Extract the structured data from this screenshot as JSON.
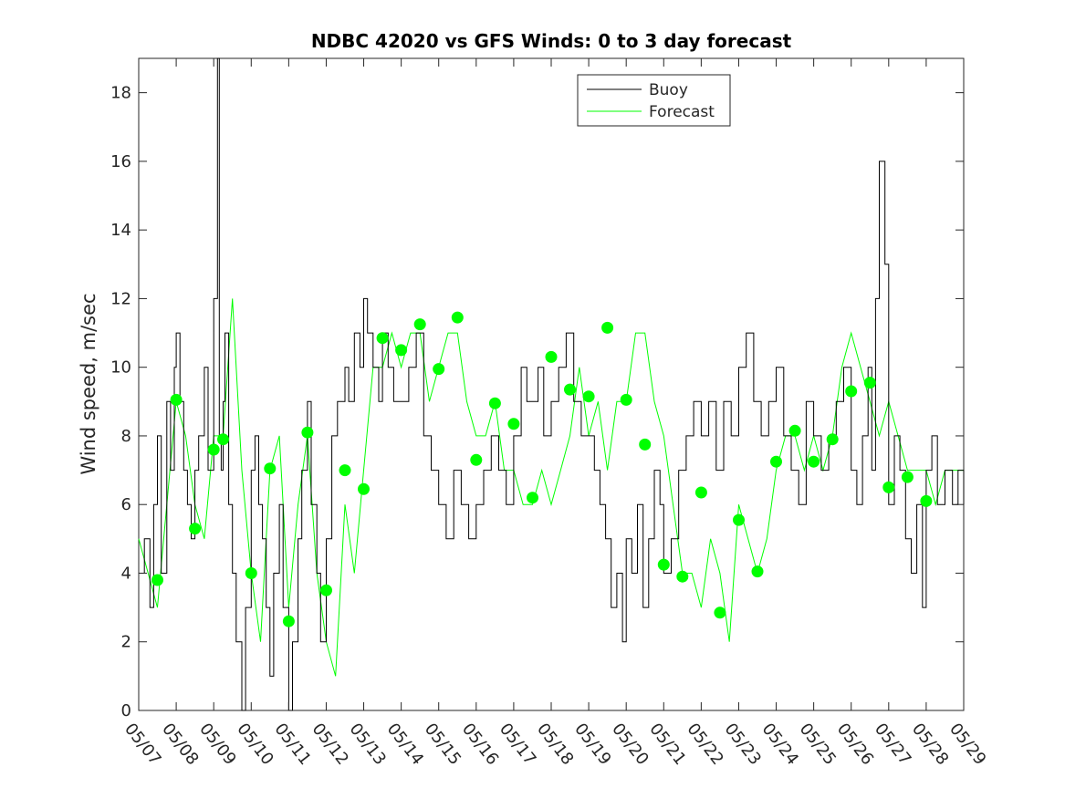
{
  "chart_data": {
    "type": "line",
    "title": "NDBC 42020 vs GFS Winds: 0 to 3 day forecast",
    "xlabel": "",
    "ylabel": "Wind speed, m/sec",
    "xlim": [
      "05/07",
      "05/29"
    ],
    "ylim": [
      0,
      19
    ],
    "yticks": [
      0,
      2,
      4,
      6,
      8,
      10,
      12,
      14,
      16,
      18
    ],
    "xticks": [
      "05/07",
      "05/08",
      "05/09",
      "05/10",
      "05/11",
      "05/12",
      "05/13",
      "05/14",
      "05/15",
      "05/16",
      "05/17",
      "05/18",
      "05/19",
      "05/20",
      "05/21",
      "05/22",
      "05/23",
      "05/24",
      "05/25",
      "05/26",
      "05/27",
      "05/28",
      "05/29"
    ],
    "grid": false,
    "legend": {
      "location": "top-center",
      "entries": [
        "Buoy",
        "Forecast"
      ]
    },
    "colors": {
      "buoy": "#000000",
      "forecast": "#00ff00",
      "axes": "#262626"
    },
    "x_unit": "day index from 05/07",
    "series": [
      {
        "name": "Buoy",
        "x": [
          0.0,
          0.15,
          0.3,
          0.4,
          0.5,
          0.6,
          0.75,
          0.85,
          0.95,
          1.0,
          1.1,
          1.2,
          1.3,
          1.4,
          1.5,
          1.6,
          1.75,
          1.85,
          2.0,
          2.1,
          2.15,
          2.2,
          2.25,
          2.3,
          2.4,
          2.5,
          2.6,
          2.75,
          2.85,
          3.0,
          3.1,
          3.2,
          3.3,
          3.4,
          3.5,
          3.6,
          3.75,
          3.85,
          4.0,
          4.1,
          4.25,
          4.35,
          4.5,
          4.6,
          4.75,
          4.85,
          5.0,
          5.15,
          5.3,
          5.5,
          5.6,
          5.75,
          5.9,
          6.0,
          6.1,
          6.25,
          6.4,
          6.5,
          6.65,
          6.8,
          7.0,
          7.2,
          7.4,
          7.6,
          7.8,
          8.0,
          8.2,
          8.4,
          8.6,
          8.8,
          9.0,
          9.2,
          9.4,
          9.6,
          9.8,
          10.0,
          10.2,
          10.35,
          10.5,
          10.65,
          10.8,
          11.0,
          11.2,
          11.4,
          11.6,
          11.8,
          12.0,
          12.15,
          12.3,
          12.45,
          12.6,
          12.75,
          12.9,
          13.0,
          13.15,
          13.3,
          13.45,
          13.6,
          13.75,
          13.9,
          14.0,
          14.2,
          14.4,
          14.6,
          14.8,
          15.0,
          15.2,
          15.4,
          15.6,
          15.8,
          16.0,
          16.2,
          16.4,
          16.6,
          16.8,
          17.0,
          17.2,
          17.4,
          17.6,
          17.8,
          18.0,
          18.2,
          18.4,
          18.6,
          18.8,
          19.0,
          19.15,
          19.3,
          19.45,
          19.55,
          19.65,
          19.75,
          19.9,
          20.0,
          20.15,
          20.3,
          20.45,
          20.6,
          20.75,
          20.9,
          21.0,
          21.15,
          21.3,
          21.5,
          21.7,
          21.85,
          22.0
        ],
        "values": [
          4,
          5,
          3,
          6,
          8,
          4,
          9,
          7,
          10,
          11,
          9,
          7,
          6,
          5,
          7,
          8,
          10,
          7,
          12,
          19,
          8,
          7,
          9,
          11,
          6,
          4,
          2,
          0,
          3,
          7,
          8,
          6,
          5,
          3,
          1,
          4,
          6,
          3,
          0,
          2,
          5,
          7,
          9,
          6,
          4,
          2,
          5,
          8,
          9,
          10,
          9,
          11,
          10,
          12,
          11,
          10,
          9,
          11,
          10,
          9,
          9,
          10,
          11,
          8,
          7,
          6,
          5,
          7,
          6,
          5,
          6,
          7,
          8,
          7,
          6,
          8,
          10,
          9,
          9,
          10,
          8,
          9,
          10,
          11,
          9,
          8,
          8,
          7,
          6,
          5,
          3,
          4,
          2,
          5,
          4,
          6,
          3,
          5,
          7,
          6,
          4,
          5,
          7,
          8,
          9,
          8,
          9,
          7,
          9,
          8,
          10,
          11,
          9,
          8,
          9,
          10,
          8,
          7,
          6,
          9,
          8,
          7,
          8,
          9,
          10,
          7,
          6,
          8,
          10,
          7,
          12,
          16,
          13,
          6,
          8,
          7,
          5,
          4,
          6,
          3,
          7,
          8,
          6,
          7,
          6,
          7,
          6
        ]
      },
      {
        "name": "Forecast",
        "x": [
          0.0,
          0.25,
          0.5,
          0.75,
          1.0,
          1.25,
          1.5,
          1.75,
          2.0,
          2.25,
          2.5,
          2.75,
          3.0,
          3.25,
          3.5,
          3.75,
          4.0,
          4.25,
          4.5,
          4.75,
          5.0,
          5.25,
          5.5,
          5.75,
          6.0,
          6.25,
          6.5,
          6.75,
          7.0,
          7.25,
          7.5,
          7.75,
          8.0,
          8.25,
          8.5,
          8.75,
          9.0,
          9.25,
          9.5,
          9.75,
          10.0,
          10.25,
          10.5,
          10.75,
          11.0,
          11.25,
          11.5,
          11.75,
          12.0,
          12.25,
          12.5,
          12.75,
          13.0,
          13.25,
          13.5,
          13.75,
          14.0,
          14.25,
          14.5,
          14.75,
          15.0,
          15.25,
          15.5,
          15.75,
          16.0,
          16.25,
          16.5,
          16.75,
          17.0,
          17.25,
          17.5,
          17.75,
          18.0,
          18.25,
          18.5,
          18.75,
          19.0,
          19.25,
          19.5,
          19.75,
          20.0,
          20.25,
          20.5,
          20.75,
          21.0,
          21.25,
          21.5,
          21.75,
          22.0
        ],
        "values": [
          5,
          4,
          3,
          6,
          9,
          8,
          6,
          5,
          8,
          8,
          12,
          7,
          4,
          2,
          7,
          8,
          3,
          6,
          8,
          4,
          2,
          1,
          6,
          4,
          7,
          10,
          10,
          11,
          10,
          11,
          11,
          9,
          10,
          11,
          11,
          9,
          8,
          8,
          9,
          7,
          7,
          6,
          6,
          7,
          6,
          7,
          8,
          10,
          8,
          9,
          7,
          9,
          9,
          11,
          11,
          9,
          8,
          6,
          4,
          4,
          3,
          5,
          4,
          2,
          6,
          5,
          4,
          5,
          7,
          8,
          8,
          7,
          8,
          7,
          8,
          10,
          11,
          10,
          9,
          8,
          9,
          8,
          7,
          7,
          7,
          6,
          7,
          7,
          7
        ]
      }
    ],
    "markers": {
      "name": "Forecast markers",
      "x": [
        0.5,
        1.0,
        1.5,
        2.0,
        2.25,
        3.0,
        3.5,
        4.0,
        4.5,
        5.0,
        5.5,
        6.0,
        6.5,
        7.0,
        7.5,
        8.0,
        8.5,
        9.0,
        9.5,
        10.0,
        10.5,
        11.0,
        11.5,
        12.0,
        12.5,
        13.0,
        13.5,
        14.0,
        14.5,
        15.0,
        15.5,
        16.0,
        16.5,
        17.0,
        17.5,
        18.0,
        18.5,
        19.0,
        19.5,
        20.0,
        20.5,
        21.0
      ],
      "values": [
        3.8,
        9.05,
        5.3,
        7.6,
        7.9,
        4.0,
        7.05,
        2.6,
        8.1,
        3.5,
        7.0,
        6.45,
        10.85,
        10.5,
        11.25,
        9.95,
        11.45,
        7.3,
        8.95,
        8.35,
        6.2,
        10.3,
        9.35,
        9.15,
        11.15,
        9.05,
        7.75,
        4.25,
        3.9,
        6.35,
        2.85,
        5.55,
        4.05,
        7.25,
        8.15,
        7.25,
        7.9,
        9.3,
        9.55,
        6.5,
        6.8,
        6.1
      ]
    }
  }
}
